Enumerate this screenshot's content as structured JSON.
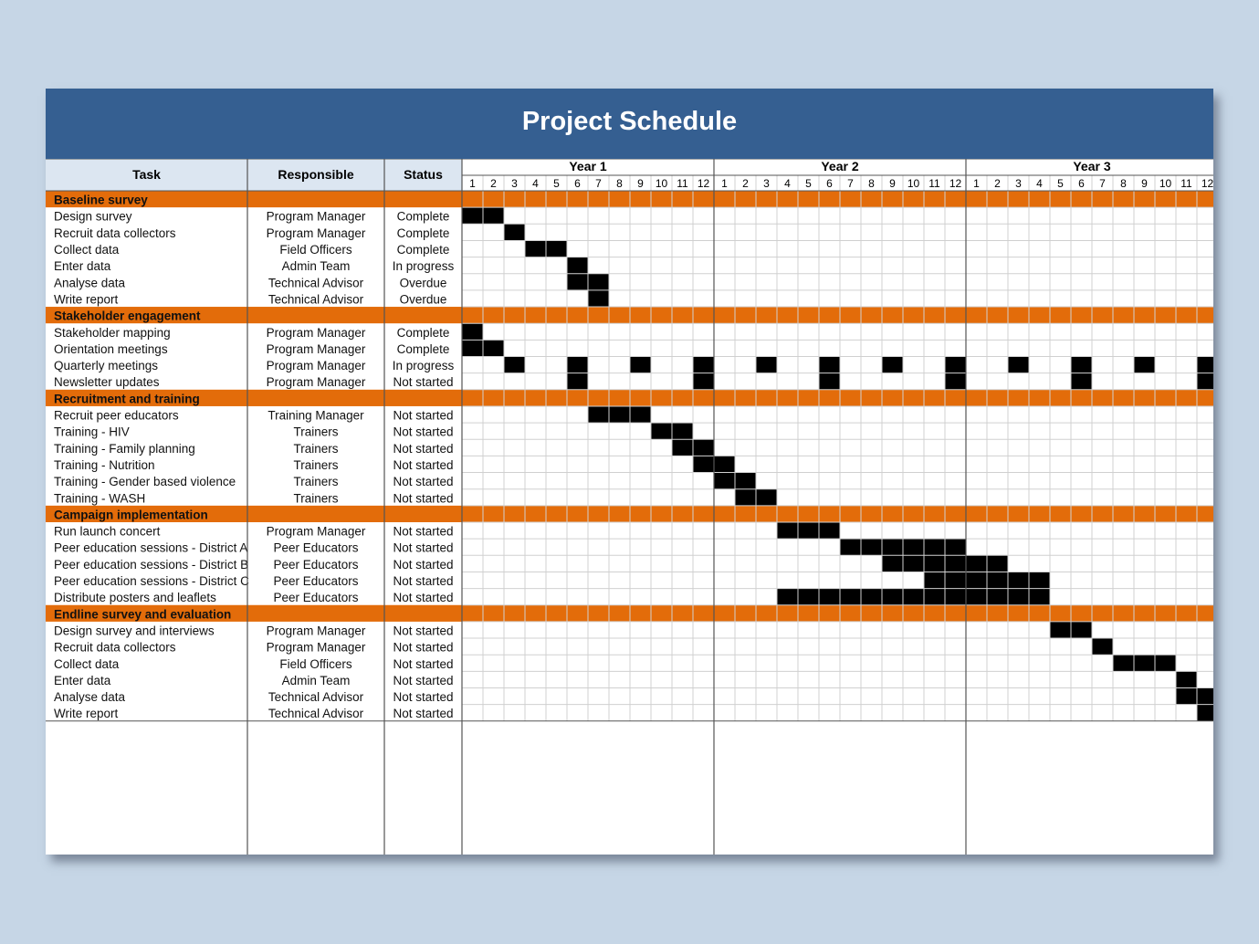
{
  "title": "Project Schedule",
  "headers": {
    "task": "Task",
    "responsible": "Responsible",
    "status": "Status"
  },
  "years": [
    "Year 1",
    "Year 2",
    "Year 3"
  ],
  "months": [
    "1",
    "2",
    "3",
    "4",
    "5",
    "6",
    "7",
    "8",
    "9",
    "10",
    "11",
    "12"
  ],
  "status_colors": {
    "Complete": "#2e8b2e",
    "In progress": "#e07a1f",
    "Overdue": "#e0221c",
    "Not started": "#8c8c8c"
  },
  "colors": {
    "title_bar": "#355f91",
    "section_bar": "#e36c0a",
    "header_bg": "#dce6f1",
    "bar_fill": "#000000",
    "background": "#c6d6e6"
  },
  "sections": [
    {
      "name": "Baseline survey",
      "tasks": [
        {
          "task": "Design survey",
          "responsible": "Program Manager",
          "status": "Complete",
          "months": [
            1,
            2
          ]
        },
        {
          "task": "Recruit data collectors",
          "responsible": "Program Manager",
          "status": "Complete",
          "months": [
            3
          ]
        },
        {
          "task": "Collect data",
          "responsible": "Field Officers",
          "status": "Complete",
          "months": [
            4,
            5
          ]
        },
        {
          "task": "Enter data",
          "responsible": "Admin Team",
          "status": "In progress",
          "months": [
            6
          ]
        },
        {
          "task": "Analyse data",
          "responsible": "Technical Advisor",
          "status": "Overdue",
          "months": [
            6,
            7
          ]
        },
        {
          "task": "Write report",
          "responsible": "Technical Advisor",
          "status": "Overdue",
          "months": [
            7
          ]
        }
      ]
    },
    {
      "name": "Stakeholder engagement",
      "tasks": [
        {
          "task": "Stakeholder mapping",
          "responsible": "Program Manager",
          "status": "Complete",
          "months": [
            1
          ]
        },
        {
          "task": "Orientation meetings",
          "responsible": "Program Manager",
          "status": "Complete",
          "months": [
            1,
            2
          ]
        },
        {
          "task": "Quarterly meetings",
          "responsible": "Program Manager",
          "status": "In progress",
          "months": [
            3,
            6,
            9,
            12,
            15,
            18,
            21,
            24,
            27,
            30,
            33,
            36
          ]
        },
        {
          "task": "Newsletter updates",
          "responsible": "Program Manager",
          "status": "Not started",
          "months": [
            6,
            12,
            18,
            24,
            30,
            36
          ]
        }
      ]
    },
    {
      "name": "Recruitment and training",
      "tasks": [
        {
          "task": "Recruit peer educators",
          "responsible": "Training Manager",
          "status": "Not started",
          "months": [
            7,
            8,
            9
          ]
        },
        {
          "task": "Training - HIV",
          "responsible": "Trainers",
          "status": "Not started",
          "months": [
            10,
            11
          ]
        },
        {
          "task": "Training - Family planning",
          "responsible": "Trainers",
          "status": "Not started",
          "months": [
            11,
            12
          ]
        },
        {
          "task": "Training - Nutrition",
          "responsible": "Trainers",
          "status": "Not started",
          "months": [
            12,
            13
          ]
        },
        {
          "task": "Training - Gender based violence",
          "responsible": "Trainers",
          "status": "Not started",
          "months": [
            13,
            14
          ]
        },
        {
          "task": "Training - WASH",
          "responsible": "Trainers",
          "status": "Not started",
          "months": [
            14,
            15
          ]
        }
      ]
    },
    {
      "name": "Campaign implementation",
      "tasks": [
        {
          "task": "Run launch concert",
          "responsible": "Program Manager",
          "status": "Not started",
          "months": [
            16,
            17,
            18
          ]
        },
        {
          "task": "Peer education sessions - District A",
          "responsible": "Peer Educators",
          "status": "Not started",
          "months": [
            19,
            20,
            21,
            22,
            23,
            24
          ]
        },
        {
          "task": "Peer education sessions - District B",
          "responsible": "Peer Educators",
          "status": "Not started",
          "months": [
            21,
            22,
            23,
            24,
            25,
            26
          ]
        },
        {
          "task": "Peer education sessions - District C",
          "responsible": "Peer Educators",
          "status": "Not started",
          "months": [
            23,
            24,
            25,
            26,
            27,
            28
          ]
        },
        {
          "task": "Distribute posters and leaflets",
          "responsible": "Peer Educators",
          "status": "Not started",
          "months": [
            16,
            17,
            18,
            19,
            20,
            21,
            22,
            23,
            24,
            25,
            26,
            27,
            28
          ]
        }
      ]
    },
    {
      "name": "Endline survey and evaluation",
      "tasks": [
        {
          "task": "Design survey and interviews",
          "responsible": "Program Manager",
          "status": "Not started",
          "months": [
            29,
            30
          ]
        },
        {
          "task": "Recruit data collectors",
          "responsible": "Program Manager",
          "status": "Not started",
          "months": [
            31
          ]
        },
        {
          "task": "Collect data",
          "responsible": "Field Officers",
          "status": "Not started",
          "months": [
            32,
            33,
            34
          ]
        },
        {
          "task": "Enter data",
          "responsible": "Admin Team",
          "status": "Not started",
          "months": [
            35
          ]
        },
        {
          "task": "Analyse data",
          "responsible": "Technical Advisor",
          "status": "Not started",
          "months": [
            35,
            36
          ]
        },
        {
          "task": "Write report",
          "responsible": "Technical Advisor",
          "status": "Not started",
          "months": [
            36
          ]
        }
      ]
    }
  ]
}
